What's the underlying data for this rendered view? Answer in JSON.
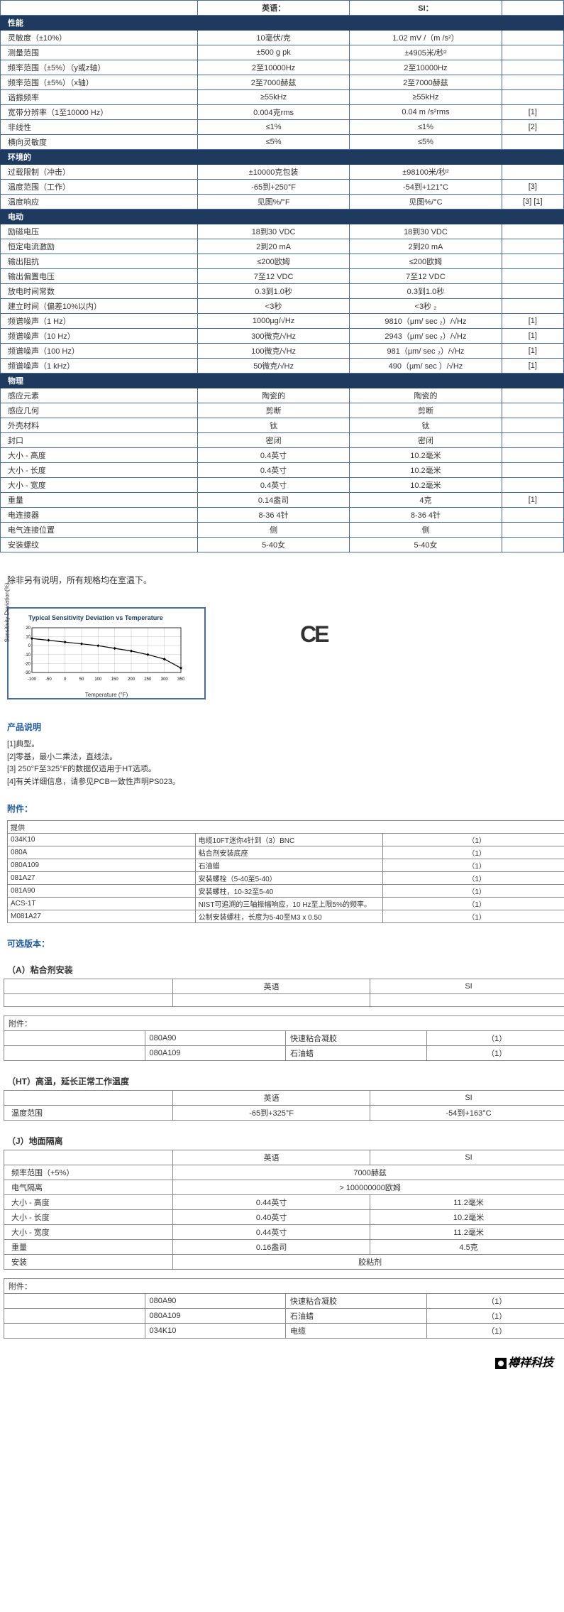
{
  "topHeader": {
    "col1": "",
    "col2": "英语：",
    "col3": "SI：",
    "col4": ""
  },
  "sections": [
    {
      "title": "性能",
      "rows": [
        {
          "l": "灵敏度（±10%）",
          "e": "10毫伏/克",
          "s": "1.02 mV /（m /s²）",
          "n": ""
        },
        {
          "l": "测量范围",
          "e": "±500 g pk",
          "s": "±4905米/秒²",
          "n": ""
        },
        {
          "l": "频率范围（±5%）（y或z轴）",
          "e": "2至10000Hz",
          "s": "2至10000Hz",
          "n": ""
        },
        {
          "l": "频率范围（±5%）（x轴）",
          "e": "2至7000赫兹",
          "s": "2至7000赫兹",
          "n": ""
        },
        {
          "l": "谐振频率",
          "e": "≥55kHz",
          "s": "≥55kHz",
          "n": ""
        },
        {
          "l": "宽带分辨率（1至10000 Hz）",
          "e": "0.004克rms",
          "s": "0.04 m /s²rms",
          "n": "[1]"
        },
        {
          "l": "非线性",
          "e": "≤1%",
          "s": "≤1%",
          "n": "[2]"
        },
        {
          "l": "横向灵敏度",
          "e": "≤5%",
          "s": "≤5%",
          "n": ""
        }
      ]
    },
    {
      "title": "环境的",
      "rows": [
        {
          "l": "过载限制（冲击）",
          "e": "±10000克包装",
          "s": "±98100米/秒²",
          "n": ""
        },
        {
          "l": "温度范围（工作）",
          "e": "-65到+250°F",
          "s": "-54到+121°C",
          "n": "[3]"
        },
        {
          "l": "温度响应",
          "e": "见图%/°F",
          "s": "见图%/°C",
          "n": "[3] [1]"
        }
      ]
    },
    {
      "title": "电动",
      "rows": [
        {
          "l": "励磁电压",
          "e": "18到30 VDC",
          "s": "18到30 VDC",
          "n": ""
        },
        {
          "l": "恒定电流激励",
          "e": "2到20 mA",
          "s": "2到20 mA",
          "n": ""
        },
        {
          "l": "输出阻抗",
          "e": "≤200欧姆",
          "s": "≤200欧姆",
          "n": ""
        },
        {
          "l": "输出偏置电压",
          "e": "7至12 VDC",
          "s": "7至12 VDC",
          "n": ""
        },
        {
          "l": "放电时间常数",
          "e": "0.3到1.0秒",
          "s": "0.3到1.0秒",
          "n": ""
        },
        {
          "l": "建立时间（偏差10%以内）",
          "e": "<3秒",
          "s": "<3秒 ₂",
          "n": ""
        },
        {
          "l": "频谱噪声（1 Hz）",
          "e": "1000µg/√Hz",
          "s": "9810（µm/ sec ₂）/√Hz",
          "n": "[1]"
        },
        {
          "l": "频谱噪声（10 Hz）",
          "e": "300微克/√Hz",
          "s": "2943（µm/ sec ₂）/√Hz",
          "n": "[1]"
        },
        {
          "l": "频谱噪声（100 Hz）",
          "e": "100微克/√Hz",
          "s": "981（µm/ sec ₂）/√Hz",
          "n": "[1]"
        },
        {
          "l": "频谱噪声（1 kHz）",
          "e": "50微克/√Hz",
          "s": "490（µm/ sec ）/√Hz",
          "n": "[1]"
        }
      ]
    },
    {
      "title": "物理",
      "rows": [
        {
          "l": "感应元素",
          "e": "陶瓷的",
          "s": "陶瓷的",
          "n": ""
        },
        {
          "l": "感应几何",
          "e": "剪断",
          "s": "剪断",
          "n": ""
        },
        {
          "l": "外壳材料",
          "e": "钛",
          "s": "钛",
          "n": ""
        },
        {
          "l": "封口",
          "e": "密闭",
          "s": "密闭",
          "n": ""
        },
        {
          "l": "大小 - 高度",
          "e": "0.4英寸",
          "s": "10.2毫米",
          "n": ""
        },
        {
          "l": "大小 - 长度",
          "e": "0.4英寸",
          "s": "10.2毫米",
          "n": ""
        },
        {
          "l": "大小 - 宽度",
          "e": "0.4英寸",
          "s": "10.2毫米",
          "n": ""
        },
        {
          "l": "重量",
          "e": "0.14盎司",
          "s": "4克",
          "n": "[1]"
        },
        {
          "l": "电连接器",
          "e": "8-36 4针",
          "s": "8-36 4针",
          "n": ""
        },
        {
          "l": "电气连接位置",
          "e": "侧",
          "s": "侧",
          "n": ""
        },
        {
          "l": "安装螺纹",
          "e": "5-40女",
          "s": "5-40女",
          "n": ""
        }
      ]
    }
  ],
  "roomTempNote": "除非另有说明，所有规格均在室温下。",
  "chart": {
    "title": "Typical Sensitivity Deviation vs Temperature",
    "ylabel": "Sensitivity Deviation(%)",
    "xlabel": "Temperature (°F)",
    "xvals": [
      -100,
      -50,
      0,
      50,
      100,
      150,
      200,
      250,
      300,
      350
    ],
    "yvals": [
      -30,
      -20,
      -10,
      0,
      10,
      20
    ],
    "line": [
      [
        -100,
        8
      ],
      [
        -50,
        6
      ],
      [
        0,
        4
      ],
      [
        50,
        2
      ],
      [
        100,
        0
      ],
      [
        150,
        -3
      ],
      [
        200,
        -6
      ],
      [
        250,
        -10
      ],
      [
        300,
        -15
      ],
      [
        350,
        -25
      ]
    ],
    "lineColor": "#000",
    "gridColor": "#999",
    "bg": "#fff"
  },
  "ceMark": "CE",
  "descTitle": "产品说明",
  "descLines": [
    "[1]典型。",
    "[2]零基，最小二乘法，直线法。",
    "[3] 250°F至325°F的数据仅适用于HT选项。",
    "[4]有关详细信息，请参见PCB一致性声明PS023。"
  ],
  "accTitle": "附件：",
  "accHeader": "提供",
  "accRows": [
    {
      "p": "034K10",
      "d": "电缆10FT迷你4针到（3）BNC",
      "q": "（1）"
    },
    {
      "p": "080A",
      "d": "粘合剂安装底座",
      "q": "（1）"
    },
    {
      "p": "080A109",
      "d": "石油蜡",
      "q": "（1）"
    },
    {
      "p": "081A27",
      "d": "安装螺栓（5-40至5-40）",
      "q": "（1）"
    },
    {
      "p": "081A90",
      "d": "安装螺柱，10-32至5-40",
      "q": "（1）"
    },
    {
      "p": "ACS-1T",
      "d": "NIST可追溯的三轴振幅响应，10 Hz至上限5%的频率。",
      "q": "（1）"
    },
    {
      "p": "M081A27",
      "d": "公制安装螺柱，长度为5-40至M3 x 0.50",
      "q": "（1）"
    }
  ],
  "optTitle": "可选版本：",
  "optA": {
    "title": "（A）粘合剂安装",
    "hdr": {
      "e": "英语",
      "s": "SI"
    },
    "accTitle": "附件：",
    "rows": [
      {
        "p": "080A90",
        "d": "快速粘合凝胶",
        "q": "（1）"
      },
      {
        "p": "080A109",
        "d": "石油蜡",
        "q": "（1）"
      }
    ]
  },
  "optHT": {
    "title": "（HT）高温，延长正常工作温度",
    "hdr": {
      "e": "英语",
      "s": "SI"
    },
    "rows": [
      {
        "l": "温度范围",
        "e": "-65到+325°F",
        "s": "-54到+163°C"
      }
    ]
  },
  "optJ": {
    "title": "（J）地面隔离",
    "hdr": {
      "e": "英语",
      "s": "SI"
    },
    "rows": [
      {
        "l": "频率范围（+5%）",
        "e": "7000赫兹",
        "s": "",
        "span": true
      },
      {
        "l": "电气隔离",
        "e": "> 100000000欧姆",
        "s": "",
        "span": true
      },
      {
        "l": "大小 - 高度",
        "e": "0.44英寸",
        "s": "11.2毫米"
      },
      {
        "l": "大小 - 长度",
        "e": "0.40英寸",
        "s": "10.2毫米"
      },
      {
        "l": "大小 - 宽度",
        "e": "0.44英寸",
        "s": "11.2毫米"
      },
      {
        "l": "重量",
        "e": "0.16盎司",
        "s": "4.5克"
      },
      {
        "l": "安装",
        "e": "胶粘剂",
        "s": "",
        "span": true
      }
    ],
    "accTitle": "附件：",
    "acc": [
      {
        "p": "080A90",
        "d": "快速粘合凝胶",
        "q": "（1）"
      },
      {
        "p": "080A109",
        "d": "石油蜡",
        "q": "（1）"
      },
      {
        "p": "034K10",
        "d": "电缆",
        "q": "（1）"
      }
    ]
  },
  "logo": "樽祥科技"
}
